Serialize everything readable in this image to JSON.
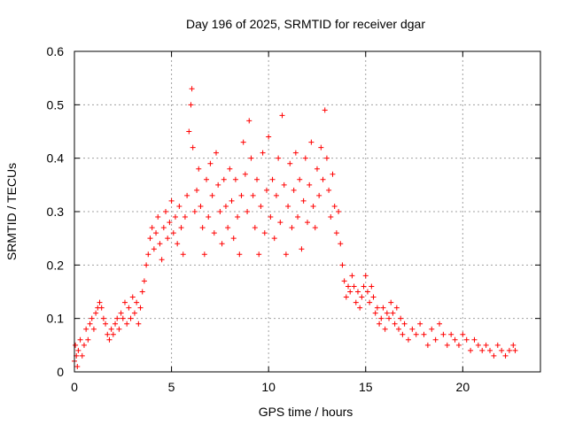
{
  "chart_data": {
    "type": "scatter",
    "title": "Day 196 of 2025, SRMTID for receiver dgar",
    "xlabel": "GPS time / hours",
    "ylabel": "SRMTID / TECUs",
    "xlim": [
      0,
      24
    ],
    "ylim": [
      0,
      0.6
    ],
    "xticks": [
      0,
      5,
      10,
      15,
      20
    ],
    "yticks": [
      0,
      0.1,
      0.2,
      0.3,
      0.4,
      0.5,
      0.6
    ],
    "x_tick_labels": [
      "0",
      "5",
      "10",
      "15",
      "20"
    ],
    "y_tick_labels": [
      "0",
      "0.1",
      "0.2",
      "0.3",
      "0.4",
      "0.5",
      "0.6"
    ],
    "grid": true,
    "marker": "+",
    "series": [
      {
        "name": "dgar",
        "color": "#ff0000",
        "points": [
          [
            0.0,
            0.02
          ],
          [
            0.05,
            0.05
          ],
          [
            0.1,
            0.03
          ],
          [
            0.15,
            0.01
          ],
          [
            0.2,
            0.04
          ],
          [
            0.3,
            0.06
          ],
          [
            0.4,
            0.03
          ],
          [
            0.5,
            0.05
          ],
          [
            0.6,
            0.08
          ],
          [
            0.7,
            0.06
          ],
          [
            0.8,
            0.09
          ],
          [
            0.9,
            0.1
          ],
          [
            1.0,
            0.08
          ],
          [
            1.1,
            0.11
          ],
          [
            1.2,
            0.12
          ],
          [
            1.3,
            0.13
          ],
          [
            1.4,
            0.12
          ],
          [
            1.5,
            0.1
          ],
          [
            1.6,
            0.09
          ],
          [
            1.7,
            0.07
          ],
          [
            1.8,
            0.06
          ],
          [
            1.9,
            0.08
          ],
          [
            2.0,
            0.07
          ],
          [
            2.1,
            0.09
          ],
          [
            2.2,
            0.1
          ],
          [
            2.3,
            0.08
          ],
          [
            2.4,
            0.11
          ],
          [
            2.5,
            0.1
          ],
          [
            2.6,
            0.13
          ],
          [
            2.7,
            0.09
          ],
          [
            2.8,
            0.12
          ],
          [
            2.9,
            0.1
          ],
          [
            3.0,
            0.14
          ],
          [
            3.1,
            0.11
          ],
          [
            3.2,
            0.13
          ],
          [
            3.3,
            0.09
          ],
          [
            3.4,
            0.12
          ],
          [
            3.5,
            0.15
          ],
          [
            3.6,
            0.17
          ],
          [
            3.7,
            0.2
          ],
          [
            3.8,
            0.22
          ],
          [
            3.9,
            0.25
          ],
          [
            4.0,
            0.27
          ],
          [
            4.1,
            0.23
          ],
          [
            4.2,
            0.26
          ],
          [
            4.3,
            0.29
          ],
          [
            4.4,
            0.24
          ],
          [
            4.5,
            0.21
          ],
          [
            4.6,
            0.27
          ],
          [
            4.7,
            0.3
          ],
          [
            4.8,
            0.25
          ],
          [
            4.9,
            0.28
          ],
          [
            5.0,
            0.32
          ],
          [
            5.1,
            0.26
          ],
          [
            5.2,
            0.29
          ],
          [
            5.3,
            0.24
          ],
          [
            5.4,
            0.31
          ],
          [
            5.5,
            0.27
          ],
          [
            5.6,
            0.22
          ],
          [
            5.7,
            0.29
          ],
          [
            5.8,
            0.33
          ],
          [
            5.9,
            0.45
          ],
          [
            6.0,
            0.5
          ],
          [
            6.05,
            0.53
          ],
          [
            6.1,
            0.42
          ],
          [
            6.2,
            0.3
          ],
          [
            6.3,
            0.34
          ],
          [
            6.4,
            0.38
          ],
          [
            6.5,
            0.31
          ],
          [
            6.6,
            0.27
          ],
          [
            6.7,
            0.22
          ],
          [
            6.8,
            0.36
          ],
          [
            6.9,
            0.29
          ],
          [
            7.0,
            0.39
          ],
          [
            7.1,
            0.33
          ],
          [
            7.2,
            0.26
          ],
          [
            7.3,
            0.41
          ],
          [
            7.4,
            0.35
          ],
          [
            7.5,
            0.3
          ],
          [
            7.6,
            0.24
          ],
          [
            7.7,
            0.36
          ],
          [
            7.8,
            0.31
          ],
          [
            7.9,
            0.27
          ],
          [
            8.0,
            0.38
          ],
          [
            8.1,
            0.32
          ],
          [
            8.2,
            0.25
          ],
          [
            8.3,
            0.36
          ],
          [
            8.4,
            0.29
          ],
          [
            8.5,
            0.22
          ],
          [
            8.6,
            0.33
          ],
          [
            8.7,
            0.43
          ],
          [
            8.8,
            0.37
          ],
          [
            8.9,
            0.3
          ],
          [
            9.0,
            0.47
          ],
          [
            9.1,
            0.4
          ],
          [
            9.2,
            0.33
          ],
          [
            9.3,
            0.27
          ],
          [
            9.4,
            0.36
          ],
          [
            9.5,
            0.22
          ],
          [
            9.6,
            0.31
          ],
          [
            9.7,
            0.41
          ],
          [
            9.8,
            0.26
          ],
          [
            9.9,
            0.34
          ],
          [
            10.0,
            0.44
          ],
          [
            10.1,
            0.29
          ],
          [
            10.2,
            0.36
          ],
          [
            10.3,
            0.25
          ],
          [
            10.4,
            0.33
          ],
          [
            10.5,
            0.4
          ],
          [
            10.6,
            0.28
          ],
          [
            10.7,
            0.48
          ],
          [
            10.8,
            0.35
          ],
          [
            10.9,
            0.22
          ],
          [
            11.0,
            0.31
          ],
          [
            11.1,
            0.39
          ],
          [
            11.2,
            0.27
          ],
          [
            11.3,
            0.34
          ],
          [
            11.4,
            0.41
          ],
          [
            11.5,
            0.29
          ],
          [
            11.6,
            0.36
          ],
          [
            11.7,
            0.23
          ],
          [
            11.8,
            0.32
          ],
          [
            11.9,
            0.4
          ],
          [
            12.0,
            0.28
          ],
          [
            12.1,
            0.35
          ],
          [
            12.2,
            0.43
          ],
          [
            12.3,
            0.31
          ],
          [
            12.4,
            0.27
          ],
          [
            12.5,
            0.38
          ],
          [
            12.6,
            0.33
          ],
          [
            12.7,
            0.42
          ],
          [
            12.8,
            0.36
          ],
          [
            12.9,
            0.49
          ],
          [
            13.0,
            0.4
          ],
          [
            13.1,
            0.34
          ],
          [
            13.2,
            0.29
          ],
          [
            13.3,
            0.37
          ],
          [
            13.4,
            0.31
          ],
          [
            13.5,
            0.26
          ],
          [
            13.6,
            0.3
          ],
          [
            13.7,
            0.24
          ],
          [
            13.8,
            0.2
          ],
          [
            13.9,
            0.17
          ],
          [
            14.0,
            0.14
          ],
          [
            14.1,
            0.16
          ],
          [
            14.2,
            0.15
          ],
          [
            14.3,
            0.18
          ],
          [
            14.4,
            0.16
          ],
          [
            14.5,
            0.13
          ],
          [
            14.6,
            0.15
          ],
          [
            14.7,
            0.12
          ],
          [
            14.8,
            0.14
          ],
          [
            14.9,
            0.16
          ],
          [
            15.0,
            0.18
          ],
          [
            15.1,
            0.15
          ],
          [
            15.2,
            0.13
          ],
          [
            15.3,
            0.16
          ],
          [
            15.4,
            0.14
          ],
          [
            15.5,
            0.11
          ],
          [
            15.6,
            0.12
          ],
          [
            15.7,
            0.09
          ],
          [
            15.8,
            0.1
          ],
          [
            15.9,
            0.12
          ],
          [
            16.0,
            0.08
          ],
          [
            16.1,
            0.11
          ],
          [
            16.2,
            0.1
          ],
          [
            16.3,
            0.13
          ],
          [
            16.4,
            0.11
          ],
          [
            16.5,
            0.09
          ],
          [
            16.6,
            0.12
          ],
          [
            16.7,
            0.08
          ],
          [
            16.8,
            0.1
          ],
          [
            16.9,
            0.07
          ],
          [
            17.0,
            0.09
          ],
          [
            17.2,
            0.06
          ],
          [
            17.4,
            0.08
          ],
          [
            17.6,
            0.07
          ],
          [
            17.8,
            0.09
          ],
          [
            18.0,
            0.07
          ],
          [
            18.2,
            0.05
          ],
          [
            18.4,
            0.08
          ],
          [
            18.6,
            0.06
          ],
          [
            18.8,
            0.09
          ],
          [
            19.0,
            0.07
          ],
          [
            19.2,
            0.05
          ],
          [
            19.4,
            0.07
          ],
          [
            19.6,
            0.06
          ],
          [
            19.8,
            0.05
          ],
          [
            20.0,
            0.07
          ],
          [
            20.2,
            0.06
          ],
          [
            20.4,
            0.04
          ],
          [
            20.6,
            0.06
          ],
          [
            20.8,
            0.05
          ],
          [
            21.0,
            0.04
          ],
          [
            21.2,
            0.05
          ],
          [
            21.4,
            0.04
          ],
          [
            21.6,
            0.03
          ],
          [
            21.8,
            0.05
          ],
          [
            22.0,
            0.04
          ],
          [
            22.2,
            0.03
          ],
          [
            22.4,
            0.04
          ],
          [
            22.6,
            0.05
          ],
          [
            22.7,
            0.04
          ]
        ]
      }
    ]
  }
}
